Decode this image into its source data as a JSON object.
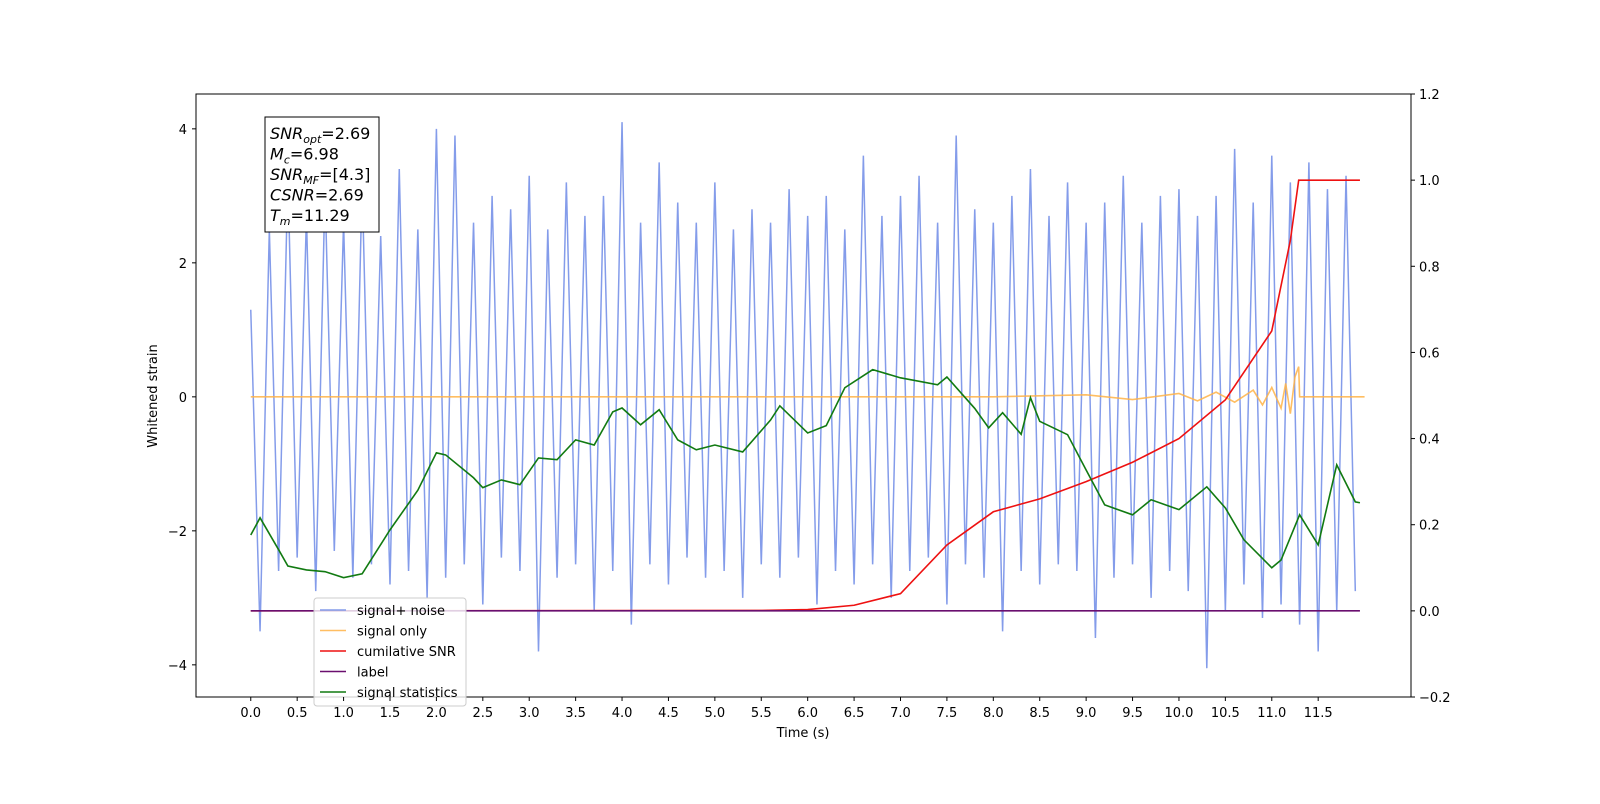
{
  "chart_data": {
    "type": "line",
    "xlabel": "Time (s)",
    "ylabel": "Whitened strain",
    "xlim": [
      -0.59,
      12.5
    ],
    "ylim": [
      -4.48,
      4.52
    ],
    "y2lim": [
      -0.2,
      1.2
    ],
    "xticks": [
      {
        "value": 0,
        "label": "0.0"
      },
      0.5,
      {
        "value": 1,
        "label": "1.0"
      },
      1.5,
      {
        "value": 2,
        "label": "2.0"
      },
      2.5,
      {
        "value": 3,
        "label": "3.0"
      },
      3.5,
      {
        "value": 4,
        "label": "4.0"
      },
      4.5,
      {
        "value": 5,
        "label": "5.0"
      },
      5.5,
      {
        "value": 6,
        "label": "6.0"
      },
      6.5,
      {
        "value": 7,
        "label": "7.0"
      },
      7.5,
      {
        "value": 8,
        "label": "8.0"
      },
      8.5,
      {
        "value": 9,
        "label": "9.0"
      },
      9.5,
      {
        "value": 10,
        "label": "10.0"
      },
      10.5,
      {
        "value": 11,
        "label": "11.0"
      },
      11.5
    ],
    "yticks": [
      {
        "value": -4,
        "label": "−4"
      },
      {
        "value": -2,
        "label": "−2"
      },
      0,
      2,
      4
    ],
    "y2ticks": [
      {
        "value": -0.2,
        "label": "−0.2"
      },
      {
        "value": 0,
        "label": "0.0"
      },
      0.2,
      0.4,
      0.6,
      0.8,
      {
        "value": 1,
        "label": "1.0"
      },
      1.2
    ],
    "legend": "lower left",
    "annotation": [
      {
        "symbol": "SNR",
        "sub": "opt",
        "text": "=2.69"
      },
      {
        "symbol": "M",
        "sub": "c",
        "text": "=6.98"
      },
      {
        "symbol": "SNR",
        "sub": "MF",
        "text": "=[4.3]"
      },
      {
        "symbol": "CSNR",
        "sub": null,
        "text": "=2.69"
      },
      {
        "symbol": "T",
        "sub": "m",
        "text": "=11.29"
      }
    ],
    "series": [
      {
        "name": "signal+ noise",
        "color": "#6f8be6",
        "x": [
          0,
          0.1,
          0.2,
          0.3,
          0.4,
          0.5,
          0.6,
          0.7,
          0.8,
          0.9,
          1,
          1.1,
          1.2,
          1.3,
          1.4,
          1.5,
          1.6,
          1.7,
          1.8,
          1.9,
          2,
          2.1,
          2.2,
          2.3,
          2.4,
          2.5,
          2.6,
          2.7,
          2.8,
          2.9,
          3,
          3.1,
          3.2,
          3.3,
          3.4,
          3.5,
          3.6,
          3.7,
          3.8,
          3.9,
          4,
          4.1,
          4.2,
          4.3,
          4.4,
          4.5,
          4.6,
          4.7,
          4.8,
          4.9,
          5,
          5.1,
          5.2,
          5.3,
          5.4,
          5.5,
          5.6,
          5.7,
          5.8,
          5.9,
          6,
          6.1,
          6.2,
          6.3,
          6.4,
          6.5,
          6.6,
          6.7,
          6.8,
          6.9,
          7,
          7.1,
          7.2,
          7.3,
          7.4,
          7.5,
          7.6,
          7.7,
          7.8,
          7.9,
          8,
          8.1,
          8.2,
          8.3,
          8.4,
          8.5,
          8.6,
          8.7,
          8.8,
          8.9,
          9,
          9.1,
          9.2,
          9.3,
          9.4,
          9.5,
          9.6,
          9.7,
          9.8,
          9.9,
          10,
          10.1,
          10.2,
          10.3,
          10.4,
          10.5,
          10.6,
          10.7,
          10.8,
          10.9,
          11,
          11.1,
          11.2,
          11.3,
          11.4,
          11.5,
          11.6,
          11.7,
          11.8,
          11.9
        ],
        "values": [
          1.3,
          -3.5,
          2.5,
          -2.6,
          3.3,
          -2.4,
          2.7,
          -2.9,
          3.1,
          -2.3,
          2.6,
          -2.7,
          3.2,
          -2.5,
          2.4,
          -2.8,
          3.4,
          -2.6,
          2.5,
          -3.0,
          4.0,
          -2.7,
          3.9,
          -2.5,
          2.6,
          -3.1,
          3.0,
          -2.4,
          2.8,
          -2.6,
          3.3,
          -3.8,
          2.5,
          -2.7,
          3.2,
          -2.5,
          2.7,
          -3.2,
          3.0,
          -2.6,
          4.1,
          -3.4,
          2.6,
          -2.5,
          3.5,
          -2.8,
          2.9,
          -2.4,
          2.6,
          -2.7,
          3.2,
          -2.6,
          2.5,
          -3.0,
          2.8,
          -2.5,
          2.6,
          -2.7,
          3.1,
          -2.4,
          2.7,
          -3.1,
          3.0,
          -2.6,
          2.5,
          -2.8,
          3.6,
          -2.5,
          2.7,
          -3.0,
          3.0,
          -2.6,
          3.3,
          -2.4,
          2.6,
          -3.1,
          3.9,
          -2.5,
          2.8,
          -2.7,
          2.6,
          -3.5,
          3.0,
          -2.6,
          3.4,
          -2.8,
          2.7,
          -2.5,
          3.2,
          -2.6,
          2.6,
          -3.6,
          2.9,
          -2.7,
          3.3,
          -2.5,
          2.6,
          -3.0,
          3.0,
          -2.6,
          3.1,
          -2.9,
          2.7,
          -4.05,
          3.0,
          -3.2,
          3.7,
          -2.8,
          2.9,
          -3.3,
          3.6,
          -3.1,
          3.2,
          -3.4,
          3.5,
          -3.8,
          3.1,
          -3.2,
          3.3,
          -2.9
        ]
      },
      {
        "name": "signal only",
        "color": "#ffb347",
        "x": [
          0,
          2,
          4,
          6,
          8,
          9,
          9.5,
          10,
          10.2,
          10.4,
          10.6,
          10.8,
          10.9,
          11,
          11.1,
          11.15,
          11.2,
          11.25,
          11.29,
          11.3,
          12
        ],
        "values": [
          0,
          0,
          0,
          0,
          0,
          0.03,
          -0.04,
          0.05,
          -0.06,
          0.07,
          -0.08,
          0.1,
          -0.12,
          0.14,
          -0.17,
          0.2,
          -0.25,
          0.3,
          0.45,
          0,
          0
        ]
      },
      {
        "name": "cumilative SNR",
        "color": "#ee1111",
        "axis": "y2",
        "x": [
          0,
          5.5,
          6,
          6.5,
          7,
          7.5,
          8,
          8.5,
          9,
          9.5,
          10,
          10.5,
          11,
          11.2,
          11.29,
          11.3,
          11.95
        ],
        "values": [
          0,
          0.001,
          0.003,
          0.013,
          0.04,
          0.153,
          0.23,
          0.26,
          0.3,
          0.345,
          0.4,
          0.49,
          0.65,
          0.86,
          1.0,
          1.0,
          1.0
        ]
      },
      {
        "name": "label",
        "color": "#6a0f6f",
        "axis": "y2",
        "x": [
          0,
          11.95
        ],
        "values": [
          0,
          0
        ]
      },
      {
        "name": "signal statistics",
        "color": "#117a11",
        "axis": "y2",
        "x": [
          0,
          0.1,
          0.3,
          0.4,
          0.6,
          0.8,
          1,
          1.2,
          1.5,
          1.8,
          2,
          2.1,
          2.4,
          2.5,
          2.7,
          2.9,
          3.1,
          3.3,
          3.5,
          3.7,
          3.9,
          4,
          4.2,
          4.4,
          4.6,
          4.8,
          5,
          5.3,
          5.6,
          5.7,
          6,
          6.2,
          6.4,
          6.7,
          7,
          7.4,
          7.5,
          7.8,
          7.95,
          8.1,
          8.3,
          8.4,
          8.5,
          8.8,
          9,
          9.2,
          9.5,
          9.7,
          10,
          10.3,
          10.5,
          10.7,
          11,
          11.1,
          11.3,
          11.5,
          11.7,
          11.9,
          11.95
        ],
        "values": [
          0.176,
          0.216,
          0.142,
          0.104,
          0.095,
          0.091,
          0.077,
          0.086,
          0.188,
          0.28,
          0.367,
          0.362,
          0.309,
          0.286,
          0.304,
          0.293,
          0.355,
          0.351,
          0.397,
          0.385,
          0.462,
          0.471,
          0.432,
          0.467,
          0.397,
          0.374,
          0.385,
          0.369,
          0.443,
          0.476,
          0.413,
          0.43,
          0.518,
          0.56,
          0.541,
          0.525,
          0.543,
          0.47,
          0.425,
          0.46,
          0.41,
          0.495,
          0.44,
          0.409,
          0.327,
          0.246,
          0.223,
          0.258,
          0.235,
          0.288,
          0.239,
          0.165,
          0.1,
          0.118,
          0.223,
          0.153,
          0.339,
          0.253,
          0.251
        ]
      }
    ]
  }
}
